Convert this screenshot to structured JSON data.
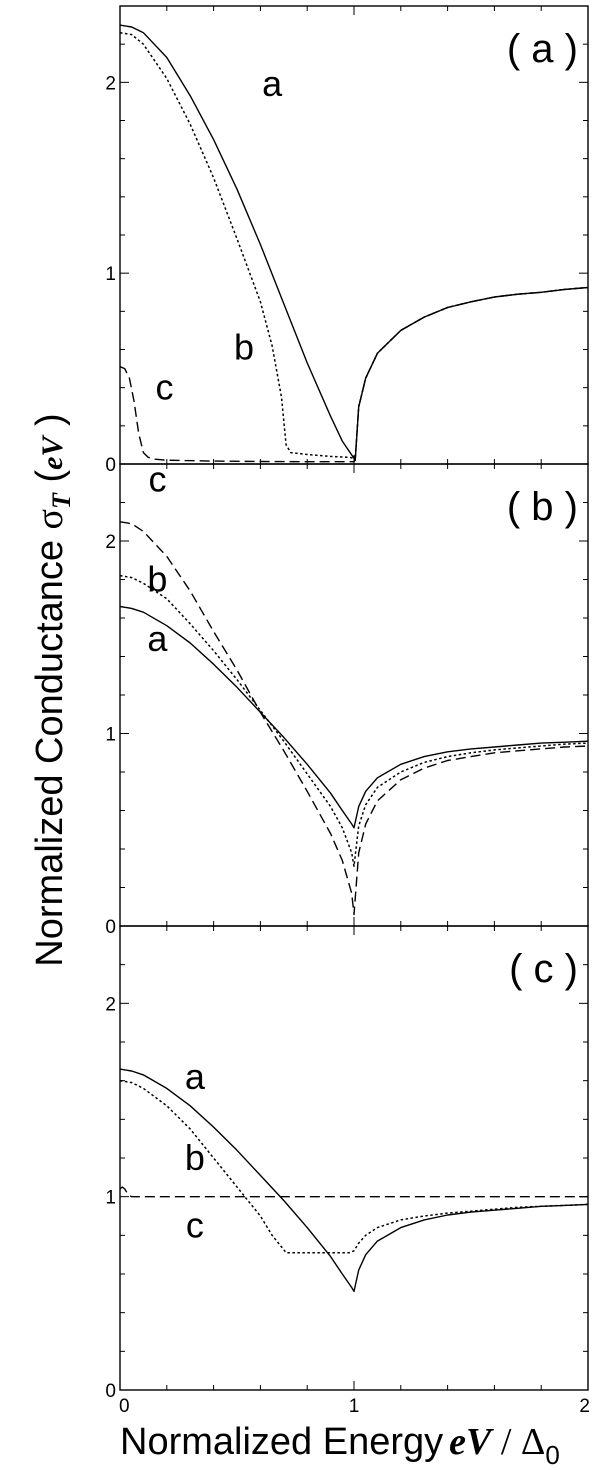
{
  "chart_data": {
    "type": "line",
    "xlabel": "Normalized Energy eV / Δ0",
    "ylabel": "Normalized Conductance σT(eV)",
    "xlabel_parts": {
      "text": "Normalized Energy",
      "em": "eV",
      "rest": " / Δ",
      "sub": "0"
    },
    "ylabel_parts": {
      "text": "Normalized Conductance ",
      "sym": "σ",
      "sym_sub": "T",
      "arg": "eV"
    },
    "xlim": [
      0,
      2
    ],
    "ylim": [
      0,
      2.4
    ],
    "xticks": [
      "0",
      "1",
      "2"
    ],
    "yticks": [
      "0",
      "1",
      "2"
    ],
    "panels": [
      {
        "label": "( a )",
        "series": [
          {
            "name": "a",
            "style": "solid",
            "x": [
              0,
              0.05,
              0.1,
              0.2,
              0.3,
              0.4,
              0.5,
              0.6,
              0.7,
              0.8,
              0.9,
              0.95,
              1.0,
              1.005,
              1.02,
              1.05,
              1.1,
              1.2,
              1.3,
              1.4,
              1.5,
              1.6,
              1.7,
              1.8,
              1.9,
              2.0
            ],
            "y": [
              2.3,
              2.29,
              2.26,
              2.13,
              1.93,
              1.7,
              1.44,
              1.15,
              0.84,
              0.53,
              0.25,
              0.12,
              0.03,
              0.02,
              0.3,
              0.45,
              0.58,
              0.7,
              0.77,
              0.82,
              0.85,
              0.875,
              0.89,
              0.9,
              0.915,
              0.925
            ]
          },
          {
            "name": "b",
            "style": "dotted",
            "x": [
              0,
              0.05,
              0.1,
              0.2,
              0.3,
              0.4,
              0.5,
              0.6,
              0.65,
              0.69,
              0.71,
              0.73,
              0.8,
              0.9,
              0.98,
              1.0,
              1.005,
              1.02,
              1.05,
              1.1,
              1.2,
              1.3,
              1.4,
              1.5,
              1.6,
              1.7,
              1.8,
              1.9,
              2.0
            ],
            "y": [
              2.26,
              2.25,
              2.2,
              2.02,
              1.78,
              1.5,
              1.18,
              0.85,
              0.62,
              0.35,
              0.1,
              0.06,
              0.05,
              0.04,
              0.035,
              0.03,
              0.02,
              0.3,
              0.45,
              0.58,
              0.7,
              0.77,
              0.82,
              0.85,
              0.875,
              0.89,
              0.9,
              0.915,
              0.925
            ]
          },
          {
            "name": "c",
            "style": "dashed",
            "x": [
              0,
              0.02,
              0.04,
              0.06,
              0.08,
              0.1,
              0.12,
              0.15,
              0.2,
              0.4,
              0.6,
              0.8,
              1.0,
              1.005,
              1.02,
              1.05,
              1.1,
              1.2,
              1.3,
              1.4,
              1.5,
              1.6,
              1.7,
              1.8,
              1.9,
              2.0
            ],
            "y": [
              0.51,
              0.5,
              0.45,
              0.33,
              0.16,
              0.06,
              0.035,
              0.025,
              0.02,
              0.015,
              0.013,
              0.012,
              0.012,
              0.02,
              0.3,
              0.45,
              0.58,
              0.7,
              0.77,
              0.82,
              0.85,
              0.875,
              0.89,
              0.9,
              0.915,
              0.925
            ]
          }
        ],
        "curve_labels": [
          {
            "text": "a",
            "x": 0.65,
            "y": 1.99
          },
          {
            "text": "b",
            "x": 0.53,
            "y": 0.61
          },
          {
            "text": "c",
            "x": 0.19,
            "y": 0.4
          }
        ]
      },
      {
        "label": "( b )",
        "series": [
          {
            "name": "a",
            "style": "solid",
            "x": [
              0,
              0.05,
              0.1,
              0.2,
              0.3,
              0.4,
              0.5,
              0.6,
              0.7,
              0.8,
              0.9,
              0.95,
              0.99,
              1.0,
              1.02,
              1.05,
              1.1,
              1.2,
              1.3,
              1.4,
              1.5,
              1.6,
              1.7,
              1.8,
              1.9,
              2.0
            ],
            "y": [
              1.66,
              1.65,
              1.63,
              1.56,
              1.47,
              1.36,
              1.24,
              1.11,
              0.98,
              0.84,
              0.69,
              0.6,
              0.53,
              0.51,
              0.62,
              0.7,
              0.77,
              0.84,
              0.88,
              0.905,
              0.92,
              0.93,
              0.94,
              0.95,
              0.955,
              0.96
            ]
          },
          {
            "name": "b",
            "style": "dotted",
            "x": [
              0,
              0.05,
              0.1,
              0.2,
              0.3,
              0.4,
              0.5,
              0.6,
              0.7,
              0.8,
              0.9,
              0.95,
              0.99,
              1.0,
              1.02,
              1.05,
              1.1,
              1.2,
              1.3,
              1.4,
              1.5,
              1.6,
              1.7,
              1.8,
              1.9,
              2.0
            ],
            "y": [
              1.82,
              1.81,
              1.78,
              1.7,
              1.57,
              1.43,
              1.28,
              1.12,
              0.96,
              0.79,
              0.62,
              0.51,
              0.38,
              0.31,
              0.52,
              0.63,
              0.72,
              0.8,
              0.85,
              0.88,
              0.9,
              0.915,
              0.925,
              0.935,
              0.945,
              0.95
            ]
          },
          {
            "name": "c",
            "style": "dashed",
            "x": [
              0,
              0.05,
              0.1,
              0.2,
              0.3,
              0.4,
              0.5,
              0.6,
              0.7,
              0.8,
              0.9,
              0.95,
              0.99,
              1.0,
              1.02,
              1.05,
              1.1,
              1.2,
              1.3,
              1.4,
              1.5,
              1.6,
              1.7,
              1.8,
              1.9,
              2.0
            ],
            "y": [
              2.1,
              2.09,
              2.05,
              1.92,
              1.74,
              1.53,
              1.33,
              1.11,
              0.91,
              0.7,
              0.48,
              0.34,
              0.17,
              0.06,
              0.38,
              0.53,
              0.65,
              0.76,
              0.82,
              0.86,
              0.88,
              0.9,
              0.91,
              0.92,
              0.93,
              0.935
            ]
          }
        ],
        "curve_labels": [
          {
            "text": "c",
            "x": 0.16,
            "y": 2.32
          },
          {
            "text": "b",
            "x": 0.16,
            "y": 1.8
          },
          {
            "text": "a",
            "x": 0.16,
            "y": 1.49
          }
        ]
      },
      {
        "label": "( c )",
        "series": [
          {
            "name": "a",
            "style": "solid",
            "x": [
              0,
              0.05,
              0.1,
              0.2,
              0.3,
              0.4,
              0.5,
              0.6,
              0.7,
              0.8,
              0.9,
              0.95,
              0.99,
              1.0,
              1.02,
              1.05,
              1.1,
              1.2,
              1.3,
              1.4,
              1.5,
              1.6,
              1.7,
              1.8,
              1.9,
              2.0
            ],
            "y": [
              1.66,
              1.65,
              1.63,
              1.56,
              1.47,
              1.36,
              1.24,
              1.11,
              0.98,
              0.84,
              0.69,
              0.6,
              0.53,
              0.51,
              0.62,
              0.7,
              0.77,
              0.84,
              0.88,
              0.905,
              0.92,
              0.93,
              0.94,
              0.95,
              0.955,
              0.96
            ]
          },
          {
            "name": "b",
            "style": "dotted",
            "x": [
              0,
              0.05,
              0.1,
              0.2,
              0.3,
              0.4,
              0.5,
              0.6,
              0.65,
              0.69,
              0.71,
              0.8,
              0.9,
              0.98,
              1.0,
              1.02,
              1.05,
              1.1,
              1.2,
              1.3,
              1.4,
              1.5,
              1.6,
              1.7,
              1.8,
              1.9,
              2.0
            ],
            "y": [
              1.6,
              1.59,
              1.56,
              1.47,
              1.35,
              1.2,
              1.05,
              0.9,
              0.8,
              0.74,
              0.71,
              0.71,
              0.71,
              0.71,
              0.72,
              0.76,
              0.8,
              0.84,
              0.88,
              0.9,
              0.915,
              0.925,
              0.935,
              0.945,
              0.95,
              0.955,
              0.96
            ]
          },
          {
            "name": "c",
            "style": "dashed",
            "x": [
              0,
              0.01,
              0.02,
              0.03,
              0.04,
              0.05,
              0.1,
              0.5,
              1.0,
              1.5,
              2.0
            ],
            "y": [
              1.04,
              1.05,
              1.04,
              1.02,
              1.005,
              1.0,
              1.0,
              1.0,
              1.0,
              1.0,
              1.0
            ]
          }
        ],
        "curve_labels": [
          {
            "text": "a",
            "x": 0.32,
            "y": 1.62
          },
          {
            "text": "b",
            "x": 0.32,
            "y": 1.2
          },
          {
            "text": "c",
            "x": 0.32,
            "y": 0.85
          }
        ]
      }
    ]
  }
}
